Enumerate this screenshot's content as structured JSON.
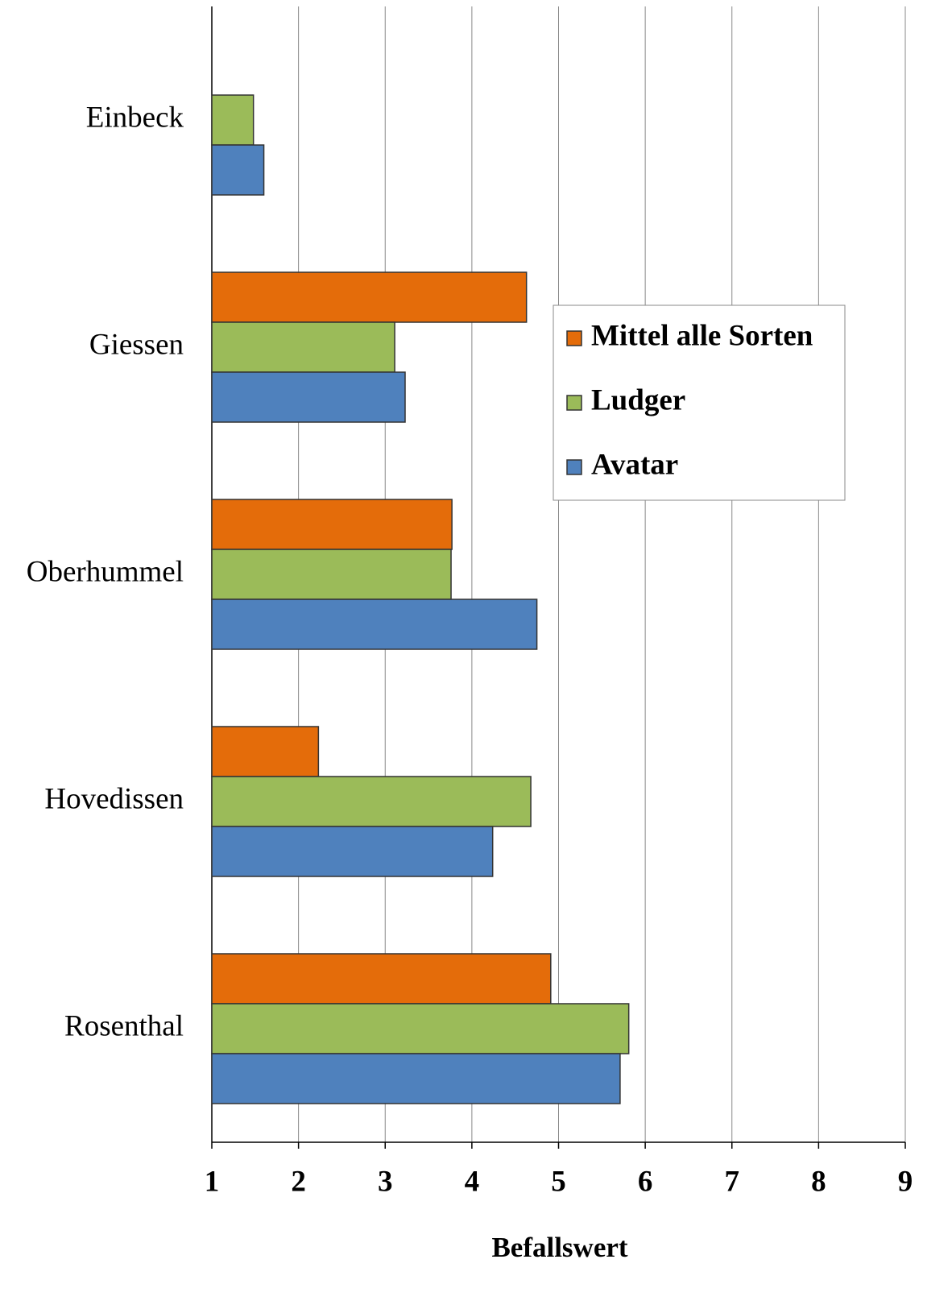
{
  "chart_data": {
    "type": "barh",
    "categories": [
      "Einbeck",
      "Giessen",
      "Oberhummel",
      "Hovedissen",
      "Rosenthal"
    ],
    "series": [
      {
        "name": "Mittel alle Sorten",
        "color": "#e46c0a",
        "values": [
          null,
          4.63,
          3.77,
          2.23,
          4.91
        ]
      },
      {
        "name": "Ludger",
        "color": "#9bbb59",
        "values": [
          1.48,
          3.11,
          3.76,
          4.68,
          5.81
        ]
      },
      {
        "name": "Avatar",
        "color": "#4f81bd",
        "values": [
          1.6,
          3.23,
          4.75,
          4.24,
          5.71
        ]
      }
    ],
    "xlabel": "Befallswert",
    "xlim": [
      1,
      9
    ],
    "xticks": [
      1,
      2,
      3,
      4,
      5,
      6,
      7,
      8,
      9
    ],
    "grid": true
  }
}
